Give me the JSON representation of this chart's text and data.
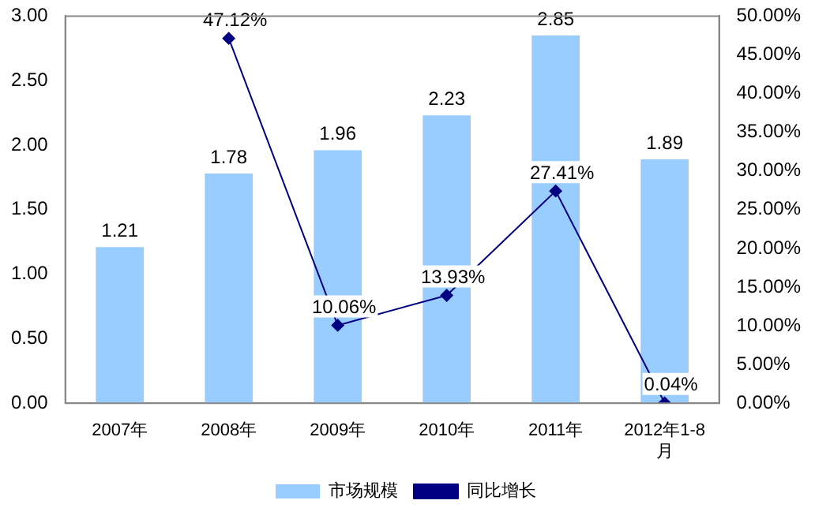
{
  "chart_data": {
    "type": "bar",
    "categories": [
      "2007年",
      "2008年",
      "2009年",
      "2010年",
      "2011年",
      "2012年1-8月"
    ],
    "series": [
      {
        "name": "市场规模",
        "color": "#99ccff",
        "values": [
          1.21,
          1.78,
          1.96,
          2.23,
          2.85,
          1.89
        ],
        "value_labels": [
          "1.21",
          "1.78",
          "1.96",
          "2.23",
          "2.85",
          "1.89"
        ]
      },
      {
        "name": "同比增长",
        "type": "line",
        "axis": "y2",
        "color": "#000080",
        "values": [
          null,
          47.12,
          10.06,
          13.93,
          27.41,
          0.04
        ],
        "value_labels": [
          null,
          "47.12%",
          "10.06%",
          "13.93%",
          "27.41%",
          "0.04%"
        ]
      }
    ],
    "ylim": [
      0,
      3
    ],
    "yticks": [
      {
        "value": 0,
        "label": "0.00"
      },
      {
        "value": 0.5,
        "label": "0.50"
      },
      {
        "value": 1,
        "label": "1.00"
      },
      {
        "value": 1.5,
        "label": "1.50"
      },
      {
        "value": 2,
        "label": "2.00"
      },
      {
        "value": 2.5,
        "label": "2.50"
      },
      {
        "value": 3,
        "label": "3.00"
      }
    ],
    "y2lim": [
      0,
      50
    ],
    "y2ticks": [
      {
        "value": 0,
        "label": "0.00%"
      },
      {
        "value": 5,
        "label": "5.00%"
      },
      {
        "value": 10,
        "label": "10.00%"
      },
      {
        "value": 15,
        "label": "15.00%"
      },
      {
        "value": 20,
        "label": "20.00%"
      },
      {
        "value": 25,
        "label": "25.00%"
      },
      {
        "value": 30,
        "label": "30.00%"
      },
      {
        "value": 35,
        "label": "35.00%"
      },
      {
        "value": 40,
        "label": "40.00%"
      },
      {
        "value": 45,
        "label": "45.00%"
      },
      {
        "value": 50,
        "label": "50.00%"
      }
    ],
    "grid": false,
    "legend": "bottom",
    "marker": "diamond",
    "line_style": "solid"
  }
}
